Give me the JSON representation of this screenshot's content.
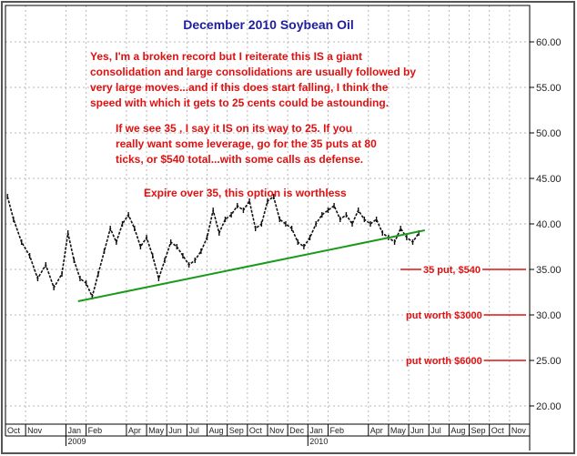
{
  "colors": {
    "title": "#1f1f9e",
    "annotation": "#e01010",
    "trendline": "#1a9a1a",
    "price": "#111111",
    "grid": "#b9b9b9",
    "frame": "#555555"
  },
  "chart_data": {
    "type": "line",
    "title": "December 2010 Soybean Oil",
    "ylim": [
      18,
      64
    ],
    "yticks": [
      "20.00",
      "25.00",
      "30.00",
      "35.00",
      "40.00",
      "45.00",
      "50.00",
      "55.00",
      "60.00"
    ],
    "ytick_values": [
      20,
      25,
      30,
      35,
      40,
      45,
      50,
      55,
      60
    ],
    "xticks": [
      "Oct",
      "Nov",
      "Jan",
      "Feb",
      "Apr",
      "May",
      "Jun",
      "Jul",
      "Aug",
      "Sep",
      "Oct",
      "Nov",
      "Dec",
      "Jan",
      "Feb",
      "Apr",
      "May",
      "Jun",
      "Jul",
      "Aug",
      "Sep",
      "Oct",
      "Nov"
    ],
    "xtick_months": [
      0,
      1,
      3,
      4,
      6,
      7,
      8,
      9,
      10,
      11,
      12,
      13,
      14,
      15,
      16,
      18,
      19,
      20,
      21,
      22,
      23,
      24,
      25
    ],
    "year_labels": [
      "2009",
      "2010"
    ],
    "year_months": [
      3,
      15
    ],
    "x_range_months": [
      0,
      26
    ],
    "series": [
      {
        "x": [
          0.1,
          0.4,
          0.8,
          1.2,
          1.6,
          2.0,
          2.4,
          2.8,
          3.1,
          3.4,
          3.7,
          4.0,
          4.3,
          4.6,
          4.9,
          5.2,
          5.5,
          5.8,
          6.1,
          6.4,
          6.7,
          7.0,
          7.3,
          7.6,
          7.9,
          8.2,
          8.5,
          8.8,
          9.1,
          9.4,
          9.7,
          10.0,
          10.3,
          10.6,
          10.9,
          11.2,
          11.5,
          11.8,
          12.1,
          12.4,
          12.7,
          13.0,
          13.3,
          13.6,
          13.9,
          14.2,
          14.5,
          14.8,
          15.1,
          15.4,
          15.7,
          16.0,
          16.3,
          16.6,
          16.9,
          17.2,
          17.5,
          17.8,
          18.1,
          18.4,
          18.7,
          19.0,
          19.3,
          19.6,
          19.9,
          20.2,
          20.5
        ],
        "y": [
          43.0,
          40.5,
          38.0,
          36.5,
          34.0,
          35.5,
          33.0,
          34.5,
          39.0,
          36.0,
          34.0,
          33.5,
          32.0,
          34.5,
          37.0,
          39.5,
          38.0,
          40.0,
          41.0,
          39.5,
          37.5,
          38.5,
          36.5,
          34.0,
          36.0,
          38.0,
          37.5,
          36.5,
          35.5,
          36.0,
          37.0,
          38.5,
          41.5,
          39.0,
          40.5,
          41.0,
          42.0,
          41.5,
          42.5,
          39.5,
          40.0,
          42.5,
          43.0,
          40.5,
          40.0,
          39.5,
          38.0,
          37.5,
          38.5,
          40.0,
          41.0,
          41.5,
          42.0,
          40.5,
          41.0,
          40.0,
          41.5,
          40.5,
          40.0,
          40.5,
          39.0,
          38.5,
          38.0,
          39.5,
          38.5,
          38.0,
          39.0
        ]
      }
    ],
    "trendline": {
      "x": [
        3.6,
        20.8
      ],
      "y": [
        31.5,
        39.3
      ]
    },
    "annotations": {
      "para1": [
        "Yes, I'm a broken record but I reiterate this IS a giant",
        "consolidation and large consolidations are usually followed by",
        "very large moves...and if this does start falling, I think the",
        "speed with which it gets to 25 cents could be astounding."
      ],
      "para2": [
        "If we see 35 , I say it IS on its way to 25. If you",
        "really want some leverage, go for the  35 puts at 80",
        "ticks, or $540 total...with some calls as defense."
      ],
      "expire": "Expire over 35, this option is worthless",
      "levels": [
        {
          "text": "35 put, $540",
          "value": 35
        },
        {
          "text": "put worth $3000",
          "value": 30
        },
        {
          "text": "put worth $6000",
          "value": 25
        }
      ]
    }
  }
}
